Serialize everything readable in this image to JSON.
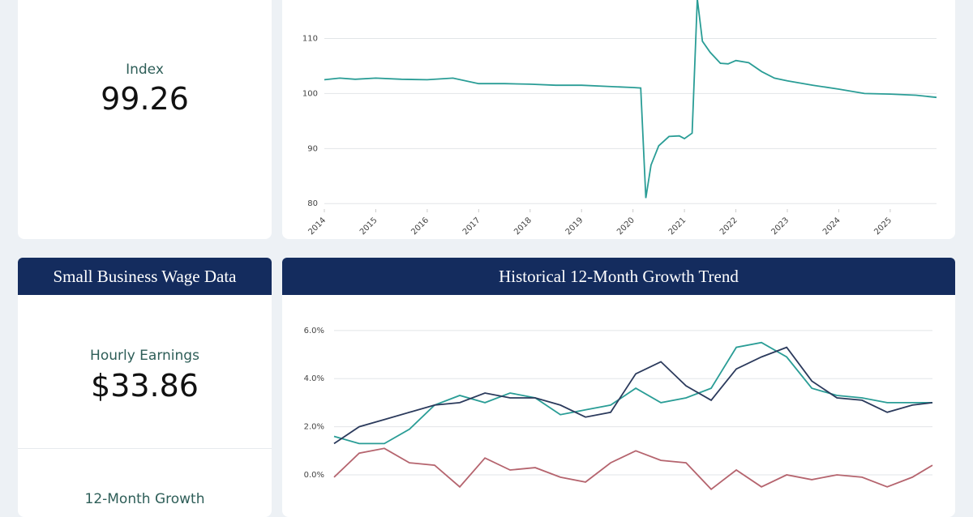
{
  "index_card": {
    "label": "Index",
    "value": "99.26"
  },
  "wage_card": {
    "header": "Small Business Wage Data",
    "earnings_label": "Hourly Earnings",
    "earnings_value": "$33.86",
    "growth_label": "12-Month Growth"
  },
  "chart_data": [
    {
      "type": "line",
      "color": "#2a9d96",
      "grid": true,
      "x": [
        2014.0,
        2014.3,
        2014.6,
        2015.0,
        2015.5,
        2016.0,
        2016.5,
        2017.0,
        2017.5,
        2018.0,
        2018.5,
        2019.0,
        2019.5,
        2020.0,
        2020.15,
        2020.25,
        2020.35,
        2020.5,
        2020.7,
        2020.9,
        2021.0,
        2021.15,
        2021.25,
        2021.35,
        2021.5,
        2021.7,
        2021.85,
        2022.0,
        2022.25,
        2022.5,
        2022.75,
        2023.0,
        2023.5,
        2024.0,
        2024.5,
        2025.0,
        2025.5,
        2025.9
      ],
      "values": [
        102.5,
        102.8,
        102.6,
        102.8,
        102.6,
        102.5,
        102.8,
        101.8,
        101.8,
        101.7,
        101.5,
        101.5,
        101.3,
        101.1,
        101.0,
        81.0,
        87.0,
        90.5,
        92.2,
        92.3,
        91.8,
        92.8,
        117.2,
        109.5,
        107.5,
        105.5,
        105.4,
        106.0,
        105.6,
        104.0,
        102.8,
        102.3,
        101.5,
        100.8,
        100.0,
        99.9,
        99.7,
        99.3
      ],
      "xlim": [
        2014,
        2025.9
      ],
      "xticks": [
        2014,
        2015,
        2016,
        2017,
        2018,
        2019,
        2020,
        2021,
        2022,
        2023,
        2024,
        2025
      ],
      "ylim": [
        79,
        117
      ],
      "yticks": [
        80,
        90,
        100,
        110
      ]
    },
    {
      "type": "line",
      "title": "Historical 12-Month Growth Trend",
      "grid": true,
      "x": [
        2014.0,
        2014.5,
        2015.0,
        2015.5,
        2016.0,
        2016.5,
        2017.0,
        2017.5,
        2018.0,
        2018.5,
        2019.0,
        2019.5,
        2020.0,
        2020.5,
        2021.0,
        2021.5,
        2022.0,
        2022.5,
        2023.0,
        2023.5,
        2024.0,
        2024.5,
        2025.0,
        2025.5,
        2025.9
      ],
      "series": [
        {
          "color": "#2a9d96",
          "values": [
            1.6,
            1.3,
            1.3,
            1.9,
            2.9,
            3.3,
            3.0,
            3.4,
            3.2,
            2.5,
            2.7,
            2.9,
            3.6,
            3.0,
            3.2,
            3.6,
            5.3,
            5.5,
            4.9,
            3.6,
            3.3,
            3.2,
            3.0,
            3.0,
            3.0
          ]
        },
        {
          "color": "#2b3a5c",
          "values": [
            1.3,
            2.0,
            2.3,
            2.6,
            2.9,
            3.0,
            3.4,
            3.2,
            3.2,
            2.9,
            2.4,
            2.6,
            4.2,
            4.7,
            3.7,
            3.1,
            4.4,
            4.9,
            5.3,
            3.9,
            3.2,
            3.1,
            2.6,
            2.9,
            3.0
          ]
        },
        {
          "color": "#b5646e",
          "values": [
            -0.1,
            0.9,
            1.1,
            0.5,
            0.4,
            -0.5,
            0.7,
            0.2,
            0.3,
            -0.1,
            -0.3,
            0.5,
            1.0,
            0.6,
            0.5,
            -0.6,
            0.2,
            -0.5,
            0.0,
            -0.2,
            0.0,
            -0.1,
            -0.5,
            -0.1,
            0.4
          ]
        }
      ],
      "xlim": [
        2014,
        2025.9
      ],
      "ylim": [
        -1.45,
        6.5
      ],
      "yticks": [
        {
          "value": 0,
          "label": "0.0%"
        },
        {
          "value": 2,
          "label": "2.0%"
        },
        {
          "value": 4,
          "label": "4.0%"
        },
        {
          "value": 6,
          "label": "6.0%"
        }
      ]
    }
  ]
}
